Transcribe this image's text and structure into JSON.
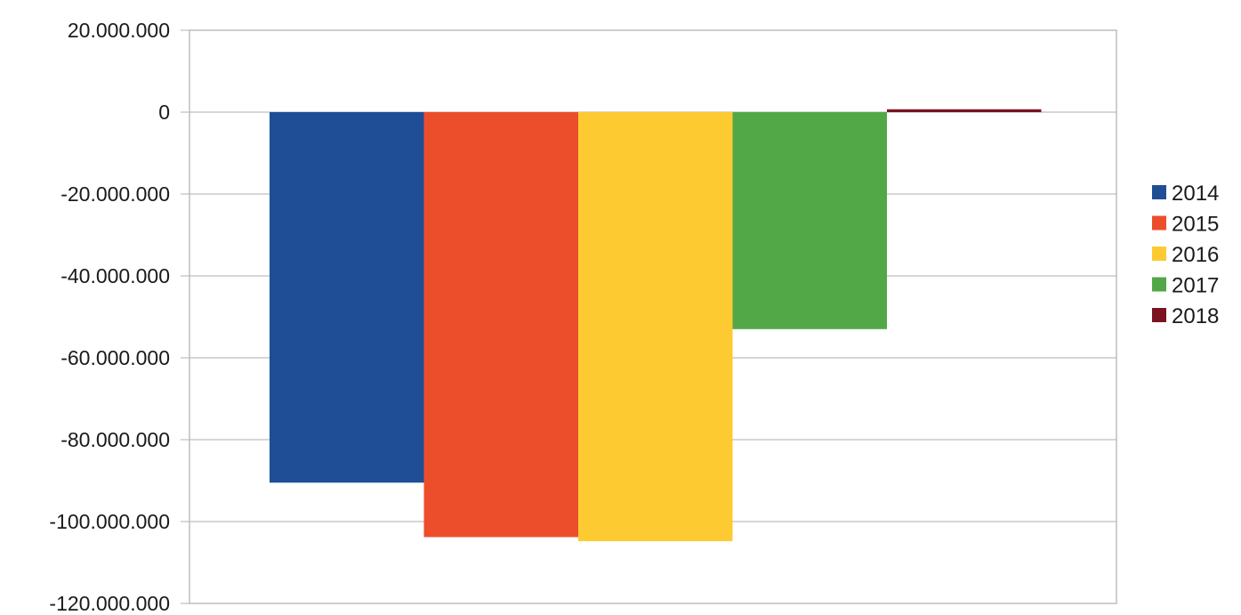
{
  "chart_data": {
    "type": "bar",
    "title": "",
    "xlabel": "",
    "ylabel": "",
    "ylim": [
      -120000000,
      20000000
    ],
    "ytick_step": 20000000,
    "ytick_labels": [
      "20.000.000",
      "0",
      "-20.000.000",
      "-40.000.000",
      "-60.000.000",
      "-80.000.000",
      "-100.000.000",
      "-120.000.000"
    ],
    "grid": true,
    "legend_position": "right",
    "series": [
      {
        "name": "2014",
        "value": -90500000,
        "color": "#1f4e96"
      },
      {
        "name": "2015",
        "value": -103800000,
        "color": "#ec4e2c"
      },
      {
        "name": "2016",
        "value": -104800000,
        "color": "#fdcb31"
      },
      {
        "name": "2017",
        "value": -53000000,
        "color": "#52a847"
      },
      {
        "name": "2018",
        "value": 700000,
        "color": "#7b1320"
      }
    ]
  }
}
